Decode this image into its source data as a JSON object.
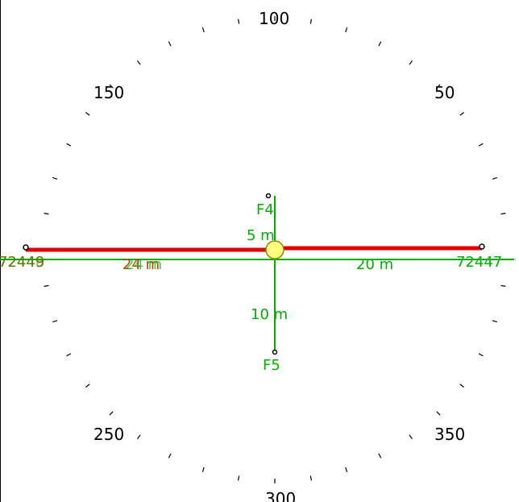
{
  "compass": {
    "labels": [
      {
        "text": "100",
        "bearing": 100
      },
      {
        "text": "50",
        "bearing": 50
      },
      {
        "text": "150",
        "bearing": 150
      },
      {
        "text": "250",
        "bearing": 250
      },
      {
        "text": "350",
        "bearing": 350
      },
      {
        "text": "300",
        "bearing": 300
      }
    ]
  },
  "points": {
    "west_id": "72448",
    "west_id_overlay": "72449",
    "east_id": "72447",
    "f4": "F4",
    "f5": "F5"
  },
  "distances": {
    "west": "24 m",
    "east": "20 m",
    "north": "5 m",
    "south": "10 m"
  },
  "colors": {
    "baseline": "#e00000",
    "measure": "#00b000",
    "station": "#ffff80",
    "labels_overlay": "#c04000"
  }
}
